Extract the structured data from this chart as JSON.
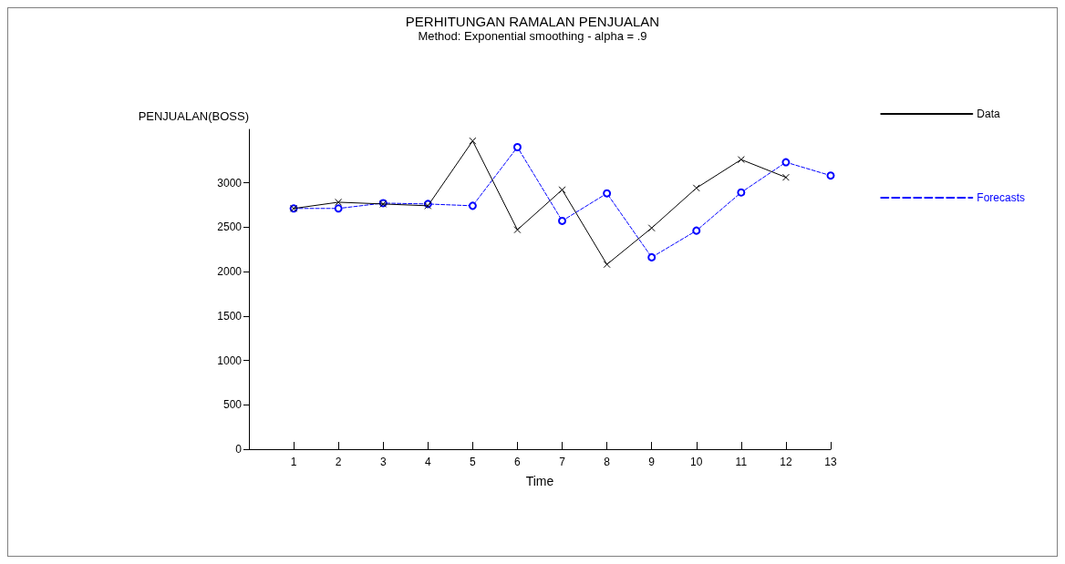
{
  "chart_data": {
    "type": "line",
    "title": "PERHITUNGAN RAMALAN PENJUALAN",
    "subtitle": "Method: Exponential smoothing - alpha = .9",
    "xlabel": "Time",
    "ylabel": "PENJUALAN(BOSS)",
    "xlim": [
      0,
      13
    ],
    "xticks": [
      1,
      2,
      3,
      4,
      5,
      6,
      7,
      8,
      9,
      10,
      11,
      12,
      13
    ],
    "ylim": [
      0,
      3600
    ],
    "yticks": [
      0,
      500,
      1000,
      1500,
      2000,
      2500,
      3000
    ],
    "grid": false,
    "legend": "right",
    "series": [
      {
        "name": "Data",
        "color": "#000000",
        "marker": "cross",
        "line_style": "solid",
        "x": [
          1,
          2,
          3,
          4,
          5,
          6,
          7,
          8,
          9,
          10,
          11,
          12
        ],
        "values": [
          2710,
          2780,
          2760,
          2740,
          3470,
          2470,
          2920,
          2080,
          2490,
          2940,
          3260,
          3060
        ]
      },
      {
        "name": "Forecasts",
        "color": "#0000ff",
        "marker": "circle",
        "line_style": "dashed",
        "x": [
          1,
          2,
          3,
          4,
          5,
          6,
          7,
          8,
          9,
          10,
          11,
          12,
          13
        ],
        "values": [
          2710,
          2710,
          2770,
          2760,
          2740,
          3400,
          2570,
          2880,
          2160,
          2460,
          2890,
          3230,
          3080
        ]
      }
    ]
  }
}
